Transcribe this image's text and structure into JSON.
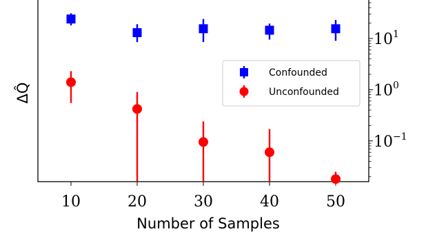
{
  "chart_data": {
    "type": "scatter",
    "xlabel": "Number of Samples",
    "ylabel": "ΔQ̂",
    "x_ticks": [
      "10",
      "20",
      "30",
      "40",
      "50"
    ],
    "yscale": "log",
    "y_ticks": [
      {
        "value": 10,
        "base": "10",
        "exp": "1"
      },
      {
        "value": 1,
        "base": "10",
        "exp": "0"
      },
      {
        "value": 0.1,
        "base": "10",
        "exp": "−1"
      }
    ],
    "xlim": [
      5,
      55
    ],
    "ylim": [
      0.016,
      60
    ],
    "legend_position": "center-right",
    "series": [
      {
        "name": "Confounded",
        "color": "#0000ff",
        "marker": "square",
        "x": [
          10,
          20,
          30,
          40,
          50
        ],
        "y": [
          24,
          13,
          15.5,
          14.5,
          15.5
        ],
        "err_low": [
          18,
          8.5,
          8.5,
          9.5,
          9
        ],
        "err_high": [
          31,
          19,
          24,
          19.5,
          23
        ]
      },
      {
        "name": "Unconfounded",
        "color": "#ff0000",
        "marker": "circle",
        "x": [
          10,
          20,
          30,
          40,
          50
        ],
        "y": [
          1.4,
          0.42,
          0.095,
          0.06,
          0.018
        ],
        "err_low": [
          0.55,
          0.016,
          0.016,
          0.016,
          0.016
        ],
        "err_high": [
          2.3,
          0.9,
          0.24,
          0.17,
          0.025
        ]
      }
    ]
  }
}
